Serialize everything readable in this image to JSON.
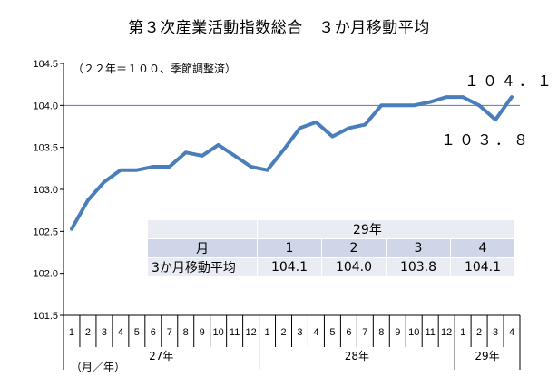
{
  "title": "第３次産業活動指数総合　３か月移動平均",
  "note": "（２２年＝１００、季節調整済）",
  "unit_note": "（月／年）",
  "annotations": {
    "last_value": "１０４．１",
    "recent_low": "１０３．８"
  },
  "colors": {
    "line": "#4a7ebb",
    "reference_line": "#4a7ebb",
    "grid": "#000000"
  },
  "chart_data": {
    "type": "line",
    "title": "第３次産業活動指数総合　３か月移動平均",
    "ylim": [
      101.5,
      104.5
    ],
    "y_ticks": [
      "101.5",
      "102.0",
      "102.5",
      "103.0",
      "103.5",
      "104.0",
      "104.5"
    ],
    "reference_line": 104.0,
    "x_month_labels": [
      "1",
      "2",
      "3",
      "4",
      "5",
      "6",
      "7",
      "8",
      "9",
      "10",
      "11",
      "12",
      "1",
      "2",
      "3",
      "4",
      "5",
      "6",
      "7",
      "8",
      "9",
      "10",
      "11",
      "12",
      "1",
      "2",
      "3",
      "4"
    ],
    "year_groups": [
      {
        "label": "27年",
        "span": 12
      },
      {
        "label": "28年",
        "span": 12
      },
      {
        "label": "29年",
        "span": 4
      }
    ],
    "series": [
      {
        "values": [
          102.53,
          102.87,
          103.09,
          103.23,
          103.23,
          103.27,
          103.27,
          103.44,
          103.4,
          103.53,
          103.4,
          103.27,
          103.23,
          103.47,
          103.73,
          103.8,
          103.63,
          103.73,
          103.77,
          104.0,
          104.0,
          104.0,
          104.04,
          104.1,
          104.1,
          104.0,
          103.83,
          104.1
        ]
      }
    ]
  },
  "inset_table": {
    "year_header": "29年",
    "row_month_label": "月",
    "months": [
      "1",
      "2",
      "3",
      "4"
    ],
    "row_value_label": "3か月移動平均",
    "values": [
      "104.1",
      "104.0",
      "103.8",
      "104.1"
    ]
  }
}
